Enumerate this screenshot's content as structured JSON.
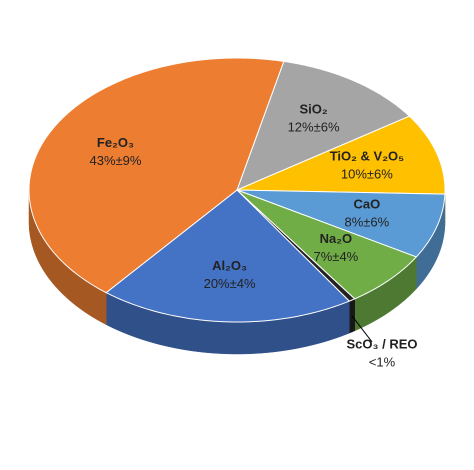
{
  "chart_data": {
    "type": "pie",
    "categories": [
      "SiO₂",
      "TiO₂ & V₂O₅",
      "CaO",
      "Na₂O",
      "ScO₃ /  REO",
      "Al₂O₃",
      "Fe₂O₃"
    ],
    "values": [
      12,
      10,
      8,
      7,
      0.5,
      20,
      43
    ],
    "value_labels": [
      "12%±6%",
      "10%±6%",
      "8%±6%",
      "7%±4%",
      "<1%",
      "20%±4%",
      "43%±9%"
    ],
    "colors": [
      "#a5a5a5",
      "#ffc000",
      "#5b9bd5",
      "#70ad47",
      "#222222",
      "#4472c4",
      "#ed7d31"
    ]
  }
}
